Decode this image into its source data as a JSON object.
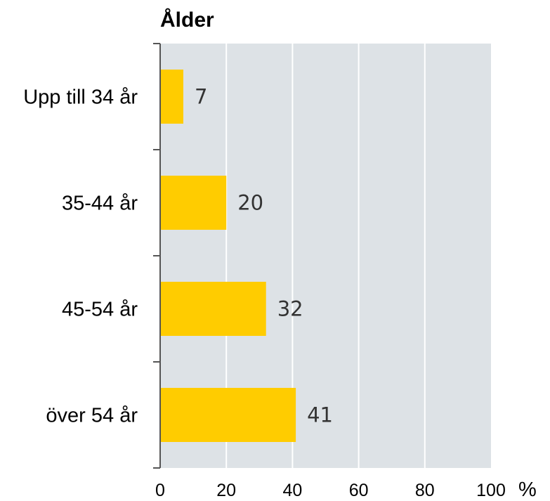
{
  "chart_data": {
    "type": "bar",
    "orientation": "horizontal",
    "title": "Ålder",
    "categories": [
      "Upp till 34 år",
      "35-44 år",
      "45-54 år",
      "över 54 år"
    ],
    "values": [
      7,
      20,
      32,
      41
    ],
    "xlim": [
      0,
      100
    ],
    "x_ticks": [
      "0",
      "20",
      "40",
      "60",
      "80",
      "100"
    ],
    "unit": "%",
    "grid": true,
    "bar_color": "#FFCC00",
    "plot_background": "#DDE2E6"
  }
}
